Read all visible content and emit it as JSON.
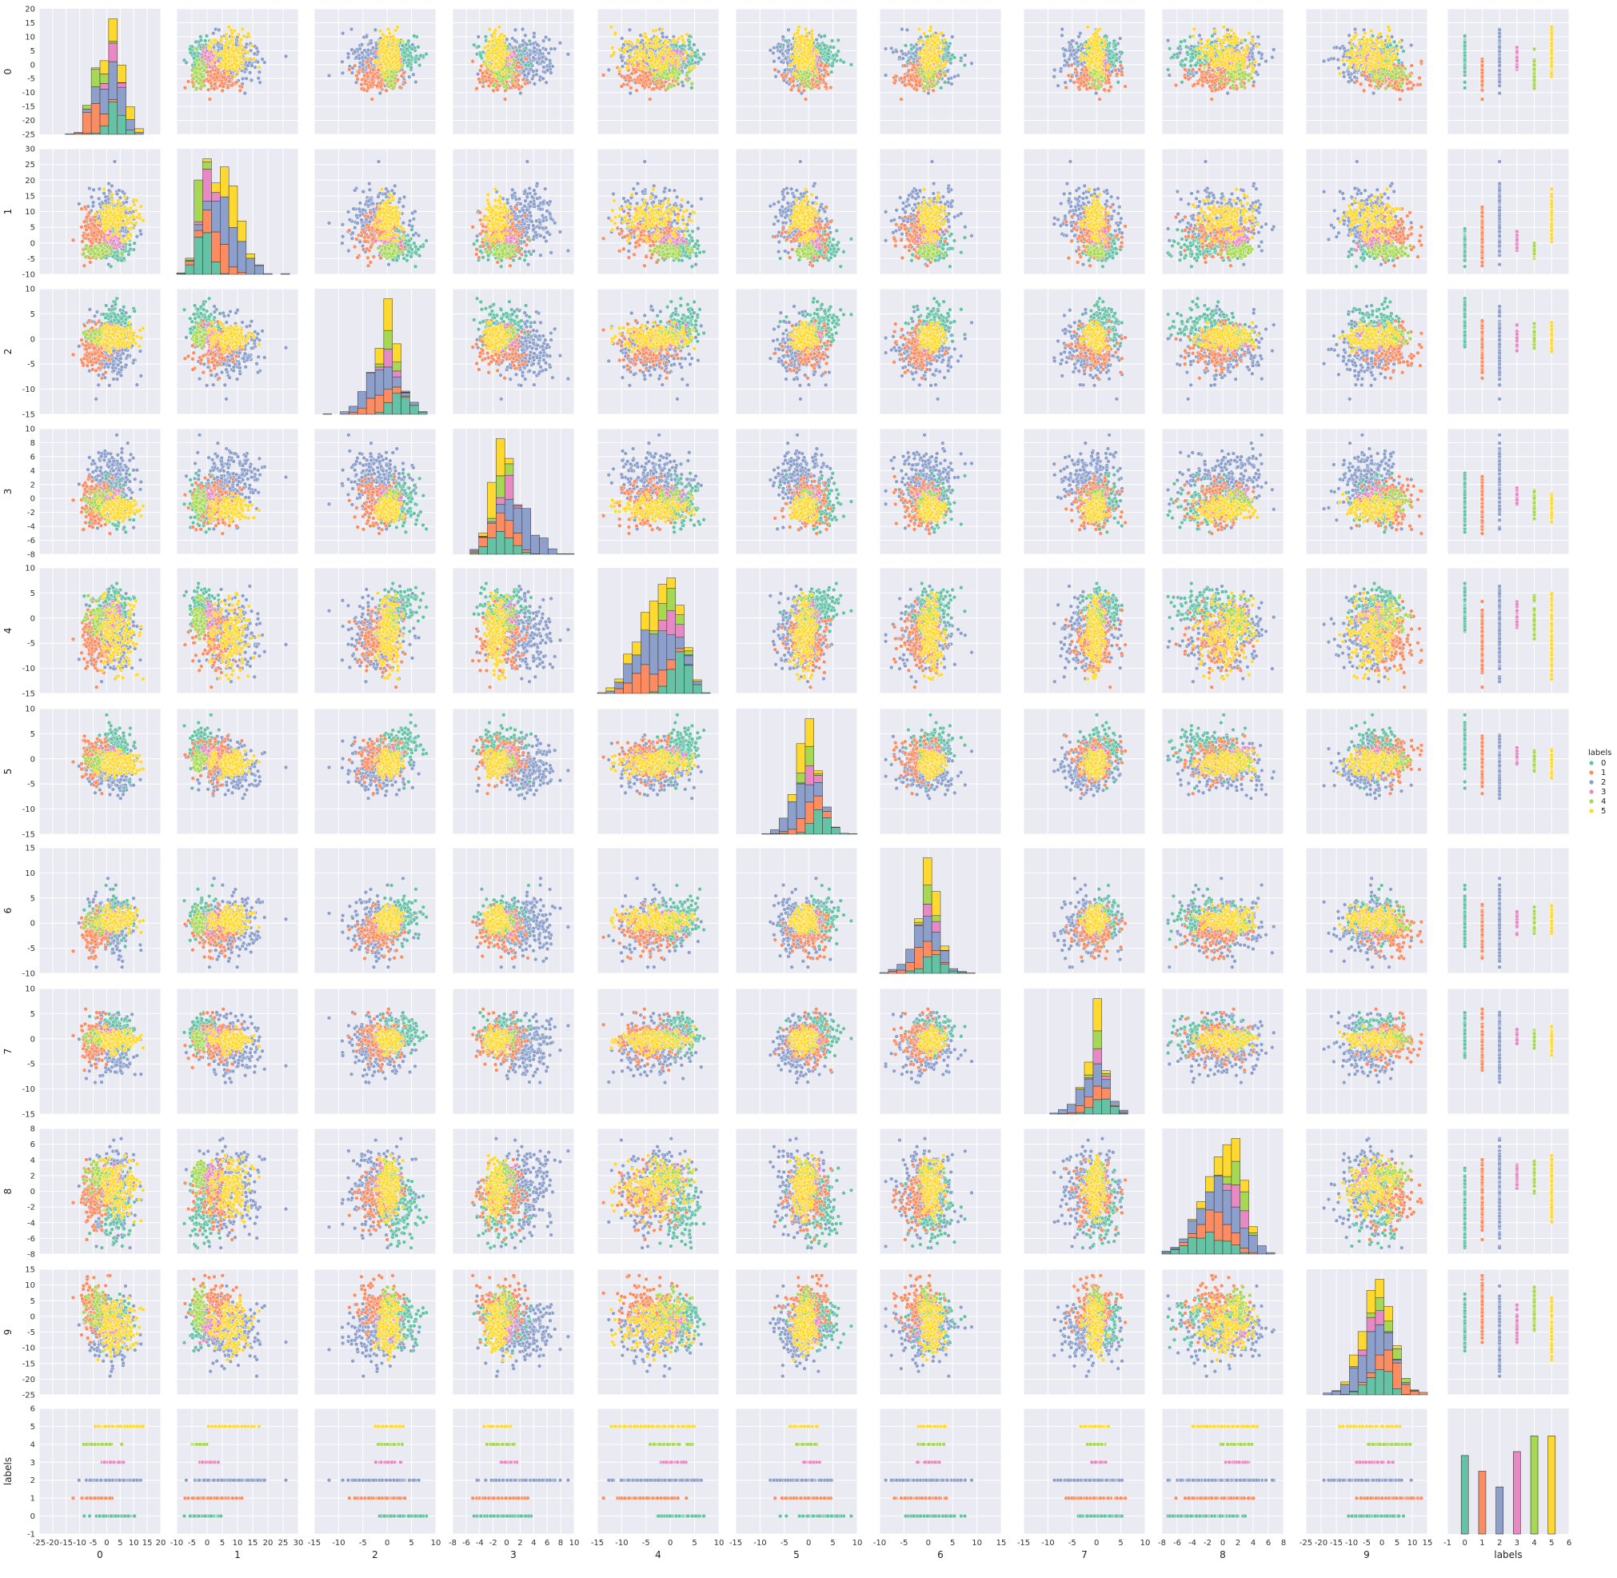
{
  "chart_data": {
    "type": "scatter",
    "variables": [
      "0",
      "1",
      "2",
      "3",
      "4",
      "5",
      "6",
      "7",
      "8",
      "9",
      "labels"
    ],
    "legend": {
      "title": "labels",
      "placement": "right",
      "entries": [
        "0",
        "1",
        "2",
        "3",
        "4",
        "5"
      ]
    },
    "colors": {
      "0": "#66c2a5",
      "1": "#fc8d62",
      "2": "#8da0cb",
      "3": "#e78ac3",
      "4": "#a6d854",
      "5": "#ffd92f",
      "background": "#eaeaf2",
      "grid": "#ffffff"
    },
    "axes": [
      {
        "name": "0",
        "lim": [
          -25,
          20
        ],
        "ticks": [
          -25,
          -20,
          -15,
          -10,
          -5,
          0,
          5,
          10,
          15,
          20
        ]
      },
      {
        "name": "1",
        "lim": [
          -10,
          30
        ],
        "ticks": [
          -10,
          -5,
          0,
          5,
          10,
          15,
          20,
          25,
          30
        ]
      },
      {
        "name": "2",
        "lim": [
          -15,
          10
        ],
        "ticks": [
          -15,
          -10,
          -5,
          0,
          5,
          10
        ]
      },
      {
        "name": "3",
        "lim": [
          -8,
          10
        ],
        "ticks": [
          -8,
          -6,
          -4,
          -2,
          0,
          2,
          4,
          6,
          8,
          10
        ]
      },
      {
        "name": "4",
        "lim": [
          -15,
          10
        ],
        "ticks": [
          -15,
          -10,
          -5,
          0,
          5,
          10
        ]
      },
      {
        "name": "5",
        "lim": [
          -15,
          10
        ],
        "ticks": [
          -15,
          -10,
          -5,
          0,
          5,
          10
        ]
      },
      {
        "name": "6",
        "lim": [
          -10,
          15
        ],
        "ticks": [
          -10,
          -5,
          0,
          5,
          10,
          15
        ]
      },
      {
        "name": "7",
        "lim": [
          -15,
          10
        ],
        "ticks": [
          -15,
          -10,
          -5,
          0,
          5,
          10
        ]
      },
      {
        "name": "8",
        "lim": [
          -8,
          8
        ],
        "ticks": [
          -8,
          -6,
          -4,
          -2,
          0,
          2,
          4,
          6,
          8
        ]
      },
      {
        "name": "9",
        "lim": [
          -25,
          15
        ],
        "ticks": [
          -25,
          -20,
          -15,
          -10,
          -5,
          0,
          5,
          10,
          15
        ]
      },
      {
        "name": "labels",
        "lim": [
          -1,
          6
        ],
        "ticks": [
          -1,
          0,
          1,
          2,
          3,
          4,
          5,
          6
        ]
      }
    ],
    "class_stats": {
      "0": {
        "mean": [
          2.8,
          -1.2,
          2.6,
          -0.8,
          2.4,
          2.2,
          1.2,
          1.0,
          -2.0,
          -1.0
        ],
        "sd": [
          3.2,
          2.4,
          2.0,
          1.8,
          2.2,
          2.0,
          2.0,
          1.8,
          2.2,
          3.5
        ]
      },
      "1": {
        "mean": [
          -4.5,
          3.0,
          -1.8,
          -1.0,
          -5.0,
          0.0,
          -1.8,
          -0.5,
          -0.5,
          3.0
        ],
        "sd": [
          3.0,
          3.5,
          2.0,
          1.8,
          2.8,
          2.2,
          2.0,
          2.2,
          2.0,
          4.0
        ]
      },
      "2": {
        "mean": [
          1.5,
          8.0,
          -2.0,
          2.5,
          -3.5,
          -1.5,
          -1.0,
          -1.5,
          0.5,
          -4.0
        ],
        "sd": [
          4.0,
          5.0,
          3.0,
          2.2,
          3.5,
          2.5,
          3.0,
          3.0,
          2.5,
          5.0
        ]
      },
      "3": {
        "mean": [
          2.0,
          0.5,
          0.5,
          0.0,
          0.5,
          0.5,
          0.5,
          0.3,
          2.0,
          -3.0
        ],
        "sd": [
          1.8,
          1.2,
          1.0,
          0.6,
          1.2,
          0.8,
          1.0,
          0.8,
          0.8,
          2.0
        ]
      },
      "4": {
        "mean": [
          -3.0,
          -2.5,
          0.5,
          -0.5,
          0.0,
          -0.3,
          0.0,
          0.0,
          2.0,
          1.0
        ],
        "sd": [
          2.0,
          1.0,
          1.0,
          0.8,
          1.5,
          0.8,
          1.0,
          0.8,
          0.8,
          3.0
        ]
      },
      "5": {
        "mean": [
          4.0,
          8.0,
          0.5,
          -1.5,
          -4.0,
          -1.0,
          0.5,
          -0.3,
          0.5,
          -3.0
        ],
        "sd": [
          4.0,
          3.0,
          1.2,
          0.8,
          3.5,
          1.2,
          1.2,
          1.0,
          2.0,
          4.0
        ]
      }
    },
    "label_counts": [
      1.0,
      0.8,
      0.6,
      1.05,
      1.25,
      1.25
    ]
  }
}
